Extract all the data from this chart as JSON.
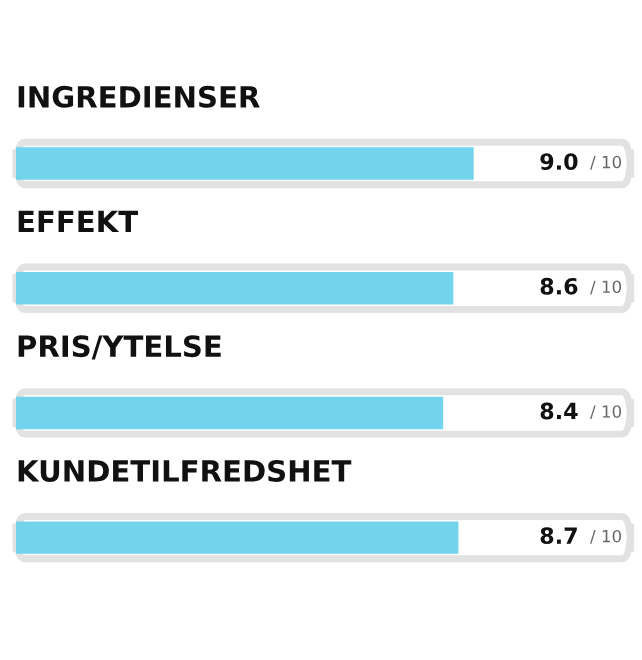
{
  "chart_data": {
    "type": "bar",
    "orientation": "horizontal",
    "categories": [
      "INGREDIENSER",
      "EFFEKT",
      "PRIS/YTELSE",
      "KUNDETILFREDSHET"
    ],
    "values": [
      9.0,
      8.6,
      8.4,
      8.7
    ],
    "value_labels": [
      "9.0",
      "8.6",
      "8.4",
      "8.7"
    ],
    "annotations": [
      "/ 10",
      "/ 10",
      "/ 10",
      "/ 10"
    ],
    "color": "#72d3ec"
  }
}
